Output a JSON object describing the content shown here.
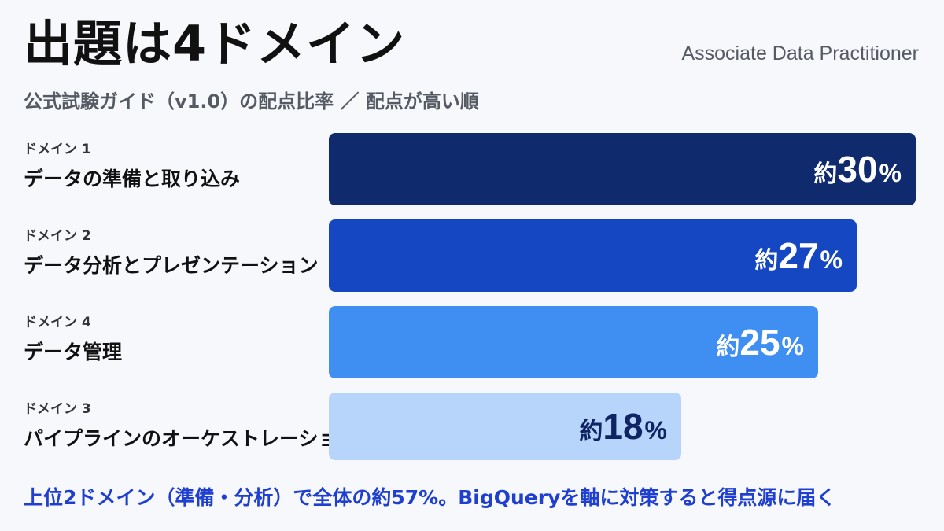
{
  "title": "出題は4ドメイン",
  "brand": "Associate Data Practitioner",
  "subtitle": "公式試験ガイド（v1.0）の配点比率 ／ 配点が高い順",
  "footer": "上位2ドメイン（準備・分析）で全体の約57%。BigQueryを軸に対策すると得点源に届く",
  "chart_data": {
    "type": "bar",
    "orientation": "horizontal",
    "value_prefix": "約",
    "value_suffix": "%",
    "categories": [
      {
        "tag": "ドメイン 1",
        "name": "データの準備と取り込み",
        "value": 30,
        "color": "#102a6e",
        "label_color": "#ffffff"
      },
      {
        "tag": "ドメイン 2",
        "name": "データ分析とプレゼンテーション",
        "value": 27,
        "color": "#1547c2",
        "label_color": "#ffffff"
      },
      {
        "tag": "ドメイン 4",
        "name": "データ管理",
        "value": 25,
        "color": "#3f8ef2",
        "label_color": "#ffffff"
      },
      {
        "tag": "ドメイン 3",
        "name": "パイプラインのオーケストレーション",
        "value": 18,
        "color": "#b7d5fb",
        "label_color": "#0f2463"
      }
    ],
    "xlim": [
      0,
      30
    ]
  }
}
